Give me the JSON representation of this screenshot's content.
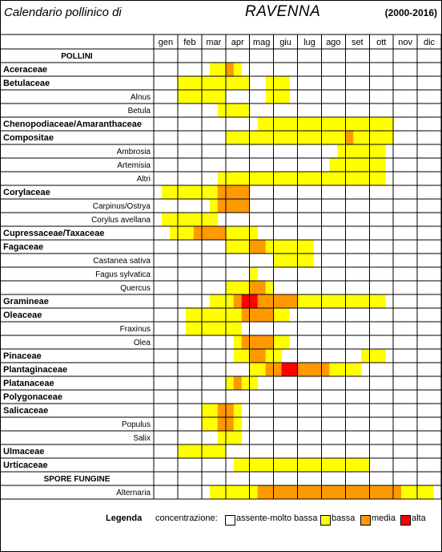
{
  "header": {
    "title": "Calendario pollinico di",
    "city": "RAVENNA",
    "period": "(2000-2016)"
  },
  "months": [
    "gen",
    "feb",
    "mar",
    "apr",
    "mag",
    "giu",
    "lug",
    "ago",
    "set",
    "ott",
    "nov",
    "dic"
  ],
  "section_labels": {
    "pollini": "POLLINI",
    "spore": "SPORE FUNGINE"
  },
  "colors": {
    "0": "#ffffff",
    "1": "#ffff00",
    "2": "#ff9900",
    "3": "#ff0000"
  },
  "chart_data": {
    "type": "heatmap",
    "title": "Calendario pollinico di RAVENNA",
    "period": "(2000-2016)",
    "periods_per_month": 3,
    "scale": [
      "assente-molto bassa",
      "bassa",
      "media",
      "alta"
    ],
    "rows": [
      {
        "label": "Aceraceae",
        "kind": "family",
        "cells": [
          0,
          0,
          0,
          0,
          0,
          0,
          0,
          1,
          1,
          2,
          1,
          0,
          0,
          0,
          0,
          0,
          0,
          0,
          0,
          0,
          0,
          0,
          0,
          0,
          0,
          0,
          0,
          0,
          0,
          0,
          0,
          0,
          0,
          0,
          0,
          0
        ]
      },
      {
        "label": "Betulaceae",
        "kind": "family",
        "cells": [
          0,
          0,
          0,
          1,
          1,
          1,
          1,
          1,
          1,
          1,
          1,
          1,
          0,
          0,
          1,
          1,
          1,
          0,
          0,
          0,
          0,
          0,
          0,
          0,
          0,
          0,
          0,
          0,
          0,
          0,
          0,
          0,
          0,
          0,
          0,
          0
        ]
      },
      {
        "label": "Alnus",
        "kind": "species",
        "cells": [
          0,
          0,
          0,
          1,
          1,
          1,
          1,
          1,
          1,
          0,
          0,
          0,
          0,
          0,
          1,
          1,
          1,
          0,
          0,
          0,
          0,
          0,
          0,
          0,
          0,
          0,
          0,
          0,
          0,
          0,
          0,
          0,
          0,
          0,
          0,
          0
        ]
      },
      {
        "label": "Betula",
        "kind": "species",
        "cells": [
          0,
          0,
          0,
          0,
          0,
          0,
          0,
          0,
          1,
          1,
          1,
          1,
          0,
          0,
          0,
          0,
          0,
          0,
          0,
          0,
          0,
          0,
          0,
          0,
          0,
          0,
          0,
          0,
          0,
          0,
          0,
          0,
          0,
          0,
          0,
          0
        ]
      },
      {
        "label": "Chenopodiaceae/Amaranthaceae",
        "kind": "family",
        "cells": [
          0,
          0,
          0,
          0,
          0,
          0,
          0,
          0,
          0,
          0,
          0,
          0,
          0,
          1,
          1,
          1,
          1,
          1,
          1,
          1,
          1,
          1,
          1,
          1,
          1,
          1,
          1,
          1,
          1,
          1,
          0,
          0,
          0,
          0,
          0,
          0
        ]
      },
      {
        "label": "Compositae",
        "kind": "family",
        "cells": [
          0,
          0,
          0,
          0,
          0,
          0,
          0,
          0,
          0,
          1,
          1,
          1,
          1,
          1,
          1,
          1,
          1,
          1,
          1,
          1,
          1,
          1,
          1,
          1,
          2,
          1,
          1,
          1,
          1,
          1,
          0,
          0,
          0,
          0,
          0,
          0
        ]
      },
      {
        "label": "Ambrosia",
        "kind": "species",
        "cells": [
          0,
          0,
          0,
          0,
          0,
          0,
          0,
          0,
          0,
          0,
          0,
          0,
          0,
          0,
          0,
          0,
          0,
          0,
          0,
          0,
          0,
          0,
          0,
          1,
          1,
          1,
          1,
          1,
          1,
          0,
          0,
          0,
          0,
          0,
          0,
          0
        ]
      },
      {
        "label": "Artemisia",
        "kind": "species",
        "cells": [
          0,
          0,
          0,
          0,
          0,
          0,
          0,
          0,
          0,
          0,
          0,
          0,
          0,
          0,
          0,
          0,
          0,
          0,
          0,
          0,
          0,
          0,
          1,
          1,
          1,
          1,
          1,
          1,
          1,
          0,
          0,
          0,
          0,
          0,
          0,
          0
        ]
      },
      {
        "label": "Altri",
        "kind": "species",
        "cells": [
          0,
          0,
          0,
          0,
          0,
          0,
          0,
          0,
          1,
          1,
          1,
          1,
          1,
          1,
          1,
          1,
          1,
          1,
          1,
          1,
          1,
          1,
          1,
          1,
          1,
          1,
          1,
          1,
          1,
          0,
          0,
          0,
          0,
          0,
          0,
          0
        ]
      },
      {
        "label": "Corylaceae",
        "kind": "family",
        "cells": [
          0,
          1,
          1,
          1,
          1,
          1,
          1,
          1,
          2,
          2,
          2,
          2,
          0,
          0,
          0,
          0,
          0,
          0,
          0,
          0,
          0,
          0,
          0,
          0,
          0,
          0,
          0,
          0,
          0,
          0,
          0,
          0,
          0,
          0,
          0,
          0
        ]
      },
      {
        "label": "Carpinus/Ostrya",
        "kind": "species",
        "cells": [
          0,
          0,
          0,
          0,
          0,
          0,
          0,
          1,
          2,
          2,
          2,
          2,
          0,
          0,
          0,
          0,
          0,
          0,
          0,
          0,
          0,
          0,
          0,
          0,
          0,
          0,
          0,
          0,
          0,
          0,
          0,
          0,
          0,
          0,
          0,
          0
        ]
      },
      {
        "label": "Corylus avellana",
        "kind": "species",
        "cells": [
          0,
          1,
          1,
          1,
          1,
          1,
          1,
          1,
          0,
          0,
          0,
          0,
          0,
          0,
          0,
          0,
          0,
          0,
          0,
          0,
          0,
          0,
          0,
          0,
          0,
          0,
          0,
          0,
          0,
          0,
          0,
          0,
          0,
          0,
          0,
          0
        ]
      },
      {
        "label": "Cupressaceae/Taxaceae",
        "kind": "family",
        "cells": [
          0,
          0,
          1,
          1,
          1,
          2,
          2,
          2,
          2,
          1,
          1,
          1,
          1,
          0,
          0,
          0,
          0,
          0,
          0,
          0,
          0,
          0,
          0,
          0,
          0,
          0,
          0,
          0,
          0,
          0,
          0,
          0,
          0,
          0,
          0,
          0
        ]
      },
      {
        "label": "Fagaceae",
        "kind": "family",
        "cells": [
          0,
          0,
          0,
          0,
          0,
          0,
          0,
          0,
          0,
          1,
          1,
          1,
          2,
          2,
          1,
          1,
          1,
          1,
          1,
          1,
          0,
          0,
          0,
          0,
          0,
          0,
          0,
          0,
          0,
          0,
          0,
          0,
          0,
          0,
          0,
          0
        ]
      },
      {
        "label": "Castanea sativa",
        "kind": "species",
        "cells": [
          0,
          0,
          0,
          0,
          0,
          0,
          0,
          0,
          0,
          0,
          0,
          0,
          0,
          0,
          0,
          1,
          1,
          1,
          1,
          1,
          0,
          0,
          0,
          0,
          0,
          0,
          0,
          0,
          0,
          0,
          0,
          0,
          0,
          0,
          0,
          0
        ]
      },
      {
        "label": "Fagus sylvatica",
        "kind": "species",
        "cells": [
          0,
          0,
          0,
          0,
          0,
          0,
          0,
          0,
          0,
          0,
          0,
          0,
          1,
          0,
          0,
          0,
          0,
          0,
          0,
          0,
          0,
          0,
          0,
          0,
          0,
          0,
          0,
          0,
          0,
          0,
          0,
          0,
          0,
          0,
          0,
          0
        ]
      },
      {
        "label": "Quercus",
        "kind": "species",
        "cells": [
          0,
          0,
          0,
          0,
          0,
          0,
          0,
          0,
          0,
          1,
          1,
          1,
          2,
          2,
          1,
          0,
          0,
          0,
          0,
          0,
          0,
          0,
          0,
          0,
          0,
          0,
          0,
          0,
          0,
          0,
          0,
          0,
          0,
          0,
          0,
          0
        ]
      },
      {
        "label": "Gramineae",
        "kind": "family",
        "cells": [
          0,
          0,
          0,
          0,
          0,
          0,
          0,
          1,
          1,
          1,
          2,
          3,
          3,
          2,
          2,
          2,
          2,
          2,
          1,
          1,
          1,
          1,
          1,
          1,
          1,
          1,
          1,
          1,
          1,
          0,
          0,
          0,
          0,
          0,
          0,
          0
        ]
      },
      {
        "label": "Oleaceae",
        "kind": "family",
        "cells": [
          0,
          0,
          0,
          0,
          1,
          1,
          1,
          1,
          1,
          1,
          1,
          2,
          2,
          2,
          2,
          1,
          1,
          0,
          0,
          0,
          0,
          0,
          0,
          0,
          0,
          0,
          0,
          0,
          0,
          0,
          0,
          0,
          0,
          0,
          0,
          0
        ]
      },
      {
        "label": "Fraxinus",
        "kind": "species",
        "cells": [
          0,
          0,
          0,
          0,
          1,
          1,
          1,
          1,
          1,
          1,
          1,
          0,
          0,
          0,
          0,
          0,
          0,
          0,
          0,
          0,
          0,
          0,
          0,
          0,
          0,
          0,
          0,
          0,
          0,
          0,
          0,
          0,
          0,
          0,
          0,
          0
        ]
      },
      {
        "label": "Olea",
        "kind": "species",
        "cells": [
          0,
          0,
          0,
          0,
          0,
          0,
          0,
          0,
          0,
          0,
          1,
          2,
          2,
          2,
          2,
          1,
          1,
          0,
          0,
          0,
          0,
          0,
          0,
          0,
          0,
          0,
          0,
          0,
          0,
          0,
          0,
          0,
          0,
          0,
          0,
          0
        ]
      },
      {
        "label": "Pinaceae",
        "kind": "family",
        "cells": [
          0,
          0,
          0,
          0,
          0,
          0,
          0,
          0,
          0,
          0,
          1,
          1,
          2,
          2,
          1,
          1,
          0,
          0,
          0,
          0,
          0,
          0,
          0,
          0,
          0,
          0,
          1,
          1,
          1,
          0,
          0,
          0,
          0,
          0,
          0,
          0
        ]
      },
      {
        "label": "Plantaginaceae",
        "kind": "family",
        "cells": [
          0,
          0,
          0,
          0,
          0,
          0,
          0,
          0,
          0,
          0,
          0,
          0,
          1,
          1,
          2,
          2,
          3,
          3,
          2,
          2,
          2,
          2,
          1,
          1,
          1,
          1,
          0,
          0,
          0,
          0,
          0,
          0,
          0,
          0,
          0,
          0
        ]
      },
      {
        "label": "Platanaceae",
        "kind": "family",
        "cells": [
          0,
          0,
          0,
          0,
          0,
          0,
          0,
          0,
          0,
          1,
          2,
          1,
          1,
          0,
          0,
          0,
          0,
          0,
          0,
          0,
          0,
          0,
          0,
          0,
          0,
          0,
          0,
          0,
          0,
          0,
          0,
          0,
          0,
          0,
          0,
          0
        ]
      },
      {
        "label": "Polygonaceae",
        "kind": "family",
        "cells": [
          0,
          0,
          0,
          0,
          0,
          0,
          0,
          0,
          0,
          0,
          0,
          0,
          0,
          0,
          0,
          0,
          0,
          0,
          0,
          0,
          0,
          0,
          0,
          0,
          0,
          0,
          0,
          0,
          0,
          0,
          0,
          0,
          0,
          0,
          0,
          0
        ]
      },
      {
        "label": "Salicaceae",
        "kind": "family",
        "cells": [
          0,
          0,
          0,
          0,
          0,
          0,
          1,
          1,
          2,
          2,
          1,
          0,
          0,
          0,
          0,
          0,
          0,
          0,
          0,
          0,
          0,
          0,
          0,
          0,
          0,
          0,
          0,
          0,
          0,
          0,
          0,
          0,
          0,
          0,
          0,
          0
        ]
      },
      {
        "label": "Populus",
        "kind": "species",
        "cells": [
          0,
          0,
          0,
          0,
          0,
          0,
          1,
          1,
          2,
          2,
          1,
          0,
          0,
          0,
          0,
          0,
          0,
          0,
          0,
          0,
          0,
          0,
          0,
          0,
          0,
          0,
          0,
          0,
          0,
          0,
          0,
          0,
          0,
          0,
          0,
          0
        ]
      },
      {
        "label": "Salix",
        "kind": "species",
        "cells": [
          0,
          0,
          0,
          0,
          0,
          0,
          0,
          0,
          1,
          1,
          1,
          0,
          0,
          0,
          0,
          0,
          0,
          0,
          0,
          0,
          0,
          0,
          0,
          0,
          0,
          0,
          0,
          0,
          0,
          0,
          0,
          0,
          0,
          0,
          0,
          0
        ]
      },
      {
        "label": "Ulmaceae",
        "kind": "family",
        "cells": [
          0,
          0,
          0,
          1,
          1,
          1,
          1,
          1,
          1,
          0,
          0,
          0,
          0,
          0,
          0,
          0,
          0,
          0,
          0,
          0,
          0,
          0,
          0,
          0,
          0,
          0,
          0,
          0,
          0,
          0,
          0,
          0,
          0,
          0,
          0,
          0
        ]
      },
      {
        "label": "Urticaceae",
        "kind": "family",
        "cells": [
          0,
          0,
          0,
          0,
          0,
          0,
          0,
          0,
          0,
          0,
          1,
          1,
          1,
          1,
          1,
          1,
          1,
          1,
          1,
          1,
          1,
          1,
          1,
          1,
          1,
          1,
          1,
          0,
          0,
          0,
          0,
          0,
          0,
          0,
          0,
          0
        ]
      },
      {
        "label": "SPORE FUNGINE",
        "kind": "section",
        "cells": []
      },
      {
        "label": "Alternaria",
        "kind": "species",
        "cells": [
          0,
          0,
          0,
          0,
          0,
          0,
          0,
          1,
          1,
          1,
          1,
          1,
          1,
          2,
          2,
          2,
          2,
          2,
          2,
          2,
          2,
          2,
          2,
          2,
          2,
          2,
          2,
          2,
          2,
          2,
          2,
          1,
          1,
          1,
          1,
          0
        ]
      }
    ]
  },
  "legend": {
    "title": "Legenda",
    "prefix": "concentrazione:",
    "items": [
      {
        "label": "assente-molto bassa",
        "level": 0
      },
      {
        "label": "bassa",
        "level": 1
      },
      {
        "label": "media",
        "level": 2
      },
      {
        "label": "alta",
        "level": 3
      }
    ]
  }
}
